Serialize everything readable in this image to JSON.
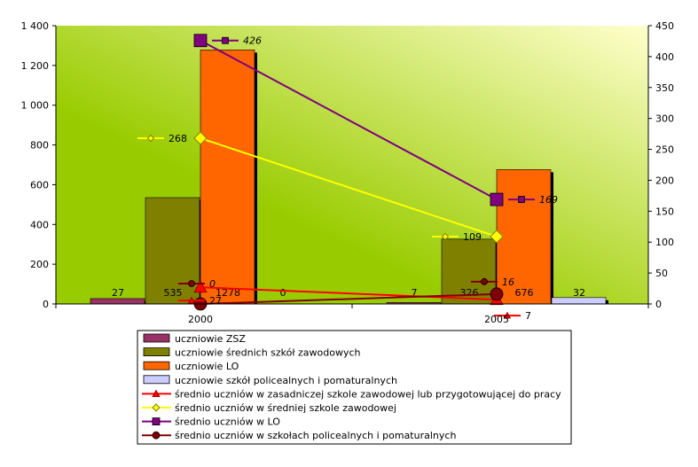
{
  "chart_data": {
    "type": "bar",
    "categories": [
      "2000",
      "2005"
    ],
    "y_left_ticks": [
      "0",
      "200",
      "400",
      "600",
      "800",
      "1 000",
      "1 200",
      "1 400"
    ],
    "y_left_range": [
      0,
      1400
    ],
    "y_right_ticks": [
      "0",
      "50",
      "100",
      "150",
      "200",
      "250",
      "300",
      "350",
      "400",
      "450"
    ],
    "y_right_range": [
      0,
      450
    ],
    "bar_series": [
      {
        "name": "uczniowie ZSZ",
        "values": [
          27,
          7
        ],
        "labels": [
          "27",
          "7"
        ],
        "color": "#993366"
      },
      {
        "name": "uczniowie średnich szkół zawodowych",
        "values": [
          535,
          326
        ],
        "labels": [
          "535",
          "326"
        ],
        "color": "#808000"
      },
      {
        "name": "uczniowie LO",
        "values": [
          1278,
          676
        ],
        "labels": [
          "1278",
          "676"
        ],
        "color": "#FF6600"
      },
      {
        "name": "uczniowie szkół policealnych i pomaturalnych",
        "values": [
          0,
          32
        ],
        "labels": [
          "0",
          "32"
        ],
        "color": "#CCCCFF"
      }
    ],
    "line_series": [
      {
        "name": "średnio uczniów w zasadniczej szkole zawodowej lub przygotowującej do pracy",
        "values": [
          27,
          7
        ],
        "labels": [
          "27",
          "7"
        ],
        "color": "#FF0000",
        "marker": "triangle",
        "italic": false
      },
      {
        "name": "średnio uczniów w średniej szkole zawodowej",
        "values": [
          268,
          109
        ],
        "labels": [
          "268",
          "109"
        ],
        "color": "#FFFF00",
        "marker": "diamond",
        "italic": false
      },
      {
        "name": "średnio uczniów w LO",
        "values": [
          426,
          169
        ],
        "labels": [
          "426",
          "169"
        ],
        "color": "#800080",
        "marker": "square",
        "italic": true
      },
      {
        "name": "średnio uczniów w szkołach policealnych i pomaturalnych",
        "values": [
          0,
          16
        ],
        "labels": [
          "0",
          "16"
        ],
        "color": "#800000",
        "marker": "circle",
        "italic": true
      }
    ],
    "gradient": {
      "from": "#99CC00",
      "to": "#FFFFCC"
    },
    "legend_position": "bottom"
  }
}
